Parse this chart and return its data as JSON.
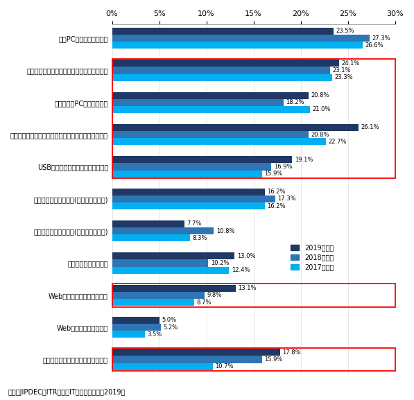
{
  "categories": [
    "社内PCのマルウェア感染",
    "従業員によるデータ、情報機器の紛失・盗難",
    "モバイル用PCの紛失・盗難",
    "スマートフォン、携帯電話、タブレットの紛失・盗難",
    "USBメモリ／記録媒体の紛失・盗難",
    "個人情報の漏洩・逸失(人為ミスによる)",
    "個人情報の漏洩・逸失(内部不正による)",
    "標的型のサイバー攻撃",
    "Webサイトへの不正アクセス",
    "Webサイトの不正改ざん",
    "外部からのなりすましメールの受信"
  ],
  "values_2019": [
    23.5,
    24.1,
    20.8,
    26.1,
    19.1,
    16.2,
    7.7,
    13.0,
    13.1,
    5.0,
    17.8
  ],
  "values_2018": [
    27.3,
    23.1,
    18.2,
    20.8,
    16.9,
    17.3,
    10.8,
    10.2,
    9.8,
    5.2,
    15.9
  ],
  "values_2017": [
    26.6,
    23.3,
    21.0,
    22.7,
    15.9,
    16.2,
    8.3,
    12.4,
    8.7,
    3.5,
    10.7
  ],
  "color_2019": "#1f3864",
  "color_2018": "#2e75b6",
  "color_2017": "#00b0f0",
  "source": "出典：JIPDEC／ITR「企業IT利活用動向調査2019」",
  "legend_labels": [
    "2019年調査",
    "2018年調査",
    "2017年調査"
  ],
  "tick_positions": [
    0,
    5,
    10,
    15,
    20,
    25,
    30
  ],
  "red_box_groups": [
    [
      1,
      2,
      3,
      4
    ],
    [
      8
    ],
    [
      10
    ]
  ],
  "bar_height": 0.22
}
